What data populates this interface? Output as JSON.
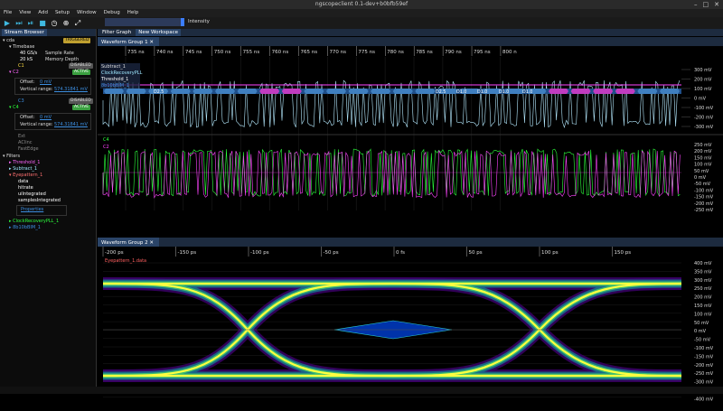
{
  "window": {
    "title": "ngscopeclient 0.1-dev+b0bfb59ef",
    "controls": [
      "–",
      "□",
      "✕"
    ]
  },
  "menu": [
    "File",
    "View",
    "Add",
    "Setup",
    "Window",
    "Debug",
    "Help"
  ],
  "toolbar": {
    "intensity_label": "Intensity",
    "buttons": [
      "play-icon",
      "play-single-icon",
      "play-once-icon",
      "stop-icon",
      "history-icon",
      "recenter-icon",
      "fullscreen-icon"
    ]
  },
  "colors": {
    "accent": "#3b7dff",
    "cyan": "#9fe8ff",
    "magenta": "#ff44ff",
    "green": "#2cff3c",
    "eye_hot": "#ffff40"
  },
  "stream_browser": {
    "tab": "Stream Browser",
    "items": [
      {
        "label": "cda",
        "badge": "TRIGGERED"
      },
      {
        "label": "Timebase"
      },
      {
        "label": "40 GS/s",
        "value": "Sample Rate"
      },
      {
        "label": "20 kS",
        "value": "Memory Depth"
      },
      {
        "label": "C1",
        "badge": "DISABLED"
      },
      {
        "label": "C2",
        "badge": "ACTIVE"
      },
      {
        "label": "Offset:",
        "value": "0 mV"
      },
      {
        "label": "Vertical range:",
        "value": "574.31841 mV"
      },
      {
        "label": "C3",
        "badge": "DISABLED"
      },
      {
        "label": "C4",
        "badge": "ACTIVE"
      },
      {
        "label": "Offset:",
        "value": "0 mV"
      },
      {
        "label": "Vertical range:",
        "value": "574.31841 mV"
      },
      {
        "label": "Ext"
      },
      {
        "label": "AClinc"
      },
      {
        "label": "FastEdge"
      },
      {
        "label": "Filters"
      },
      {
        "label": "Threshold_1"
      },
      {
        "label": "Subtract_1"
      },
      {
        "label": "Eyepattern_1"
      },
      {
        "label": "data"
      },
      {
        "label": "hitrate"
      },
      {
        "label": "uiIntegrated"
      },
      {
        "label": "samplesIntegrated"
      },
      {
        "label": "Properties"
      },
      {
        "label": "ClockRecoveryPLL_1"
      },
      {
        "label": "8b10bBIM_1"
      }
    ]
  },
  "main_tabs": {
    "filter_graph": "Filter Graph",
    "workspace": "New Workspace"
  },
  "group1": {
    "tab": "Waveform Group 1",
    "time_ticks": [
      "735 ns",
      "740 ns",
      "745 ns",
      "750 ns",
      "755 ns",
      "760 ns",
      "765 ns",
      "770 ns",
      "775 ns",
      "780 ns",
      "785 ns",
      "790 ns",
      "795 ns",
      "800 n"
    ],
    "traces": [
      "Subtract_1",
      "ClockRecoveryPLL",
      "Threshold_1",
      "8b10bBIM_1"
    ],
    "channels": [
      "C4",
      "C2"
    ],
    "decode_labels": [
      "D2.5",
      "D2.5",
      "D1.0",
      "D1.0",
      "D1.0",
      "D1.0"
    ],
    "upper_axis": [
      "300 mV",
      "200 mV",
      "100 mV",
      "0 mV",
      "-100 mV",
      "-200 mV",
      "-300 mV"
    ],
    "lower_axis": [
      "250 mV",
      "200 mV",
      "150 mV",
      "100 mV",
      "50 mV",
      "0 mV",
      "-50 mV",
      "-100 mV",
      "-150 mV",
      "-200 mV",
      "-250 mV"
    ]
  },
  "group2": {
    "tab": "Waveform Group 2",
    "trace": "Eyepattern_1.data",
    "time_ticks": [
      "-200 ps",
      "-150 ps",
      "-100 ps",
      "-50 ps",
      "0 fs",
      "50 ps",
      "100 ps",
      "150 ps"
    ],
    "axis": [
      "400 mV",
      "350 mV",
      "300 mV",
      "250 mV",
      "200 mV",
      "150 mV",
      "100 mV",
      "50 mV",
      "0 mV",
      "-50 mV",
      "-100 mV",
      "-150 mV",
      "-200 mV",
      "-250 mV",
      "-300 mV",
      "-350 mV",
      "-400 mV"
    ]
  }
}
